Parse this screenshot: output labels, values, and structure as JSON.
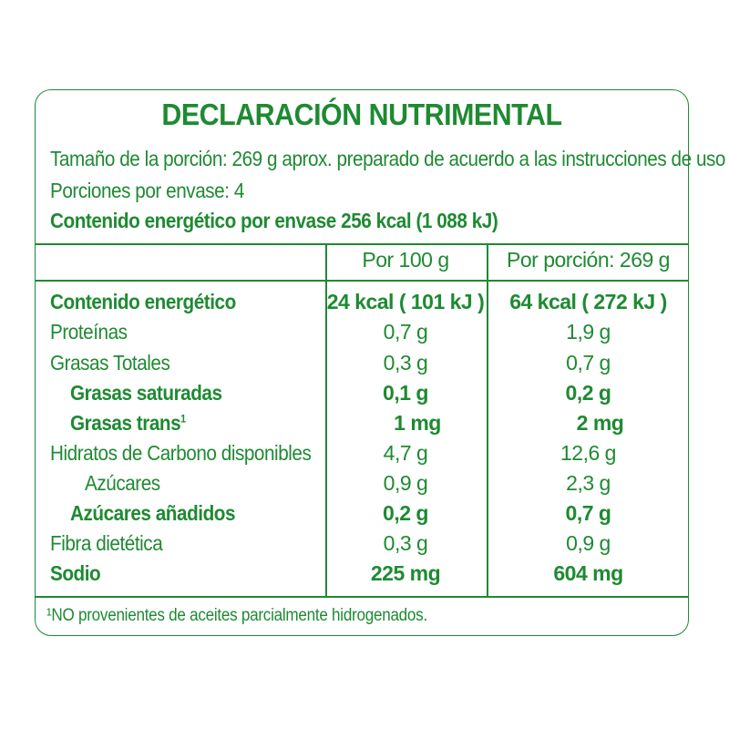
{
  "label": {
    "title": "DECLARACIÓN NUTRIMENTAL",
    "serving_size": "Tamaño de la porción: 269 g aprox. preparado de acuerdo a las instrucciones de uso",
    "servings_per_container": "Porciones por envase: 4",
    "energy_per_container": "Contenido energético por envase 256 kcal (1 088 kJ)",
    "columns": {
      "per_100": "Por 100 g",
      "per_serving": "Por porción: 269 g"
    },
    "rows": [
      {
        "name": "Contenido energético",
        "per_100": "24 kcal ( 101 kJ )",
        "per_serving": "64 kcal ( 272 kJ )"
      },
      {
        "name": "Proteínas",
        "per_100": "0,7 g",
        "per_serving": "1,9 g"
      },
      {
        "name": "Grasas Totales",
        "per_100": "0,3 g",
        "per_serving": "0,7 g"
      },
      {
        "name": "Grasas saturadas",
        "per_100": "0,1 g",
        "per_serving": "0,2 g"
      },
      {
        "name": "Grasas trans",
        "sup": "1",
        "per_100": "1 mg",
        "per_serving": "2 mg"
      },
      {
        "name": "Hidratos de Carbono disponibles",
        "per_100": "4,7 g",
        "per_serving": "12,6 g"
      },
      {
        "name": "Azúcares",
        "per_100": "0,9 g",
        "per_serving": "2,3 g"
      },
      {
        "name": "Azúcares añadidos",
        "per_100": "0,2 g",
        "per_serving": "0,7 g"
      },
      {
        "name": "Fibra dietética",
        "per_100": "0,3 g",
        "per_serving": "0,9 g"
      },
      {
        "name": "Sodio",
        "per_100": "225 mg",
        "per_serving": "604 mg"
      }
    ],
    "footnote": "¹NO provenientes de aceites parcialmente hidrogenados."
  },
  "colors": {
    "text": "#1e8a32",
    "border": "#1e8a32"
  }
}
